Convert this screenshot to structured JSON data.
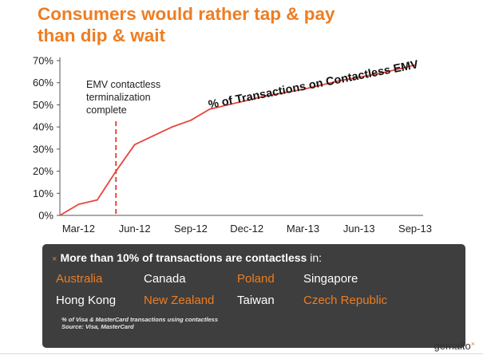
{
  "title": {
    "line1": "Consumers would rather tap & pay",
    "line2": "than dip & wait"
  },
  "colors": {
    "accent": "#ee7d22",
    "series": "#e8453c",
    "panel": "#3e3e3e"
  },
  "chart_data": {
    "type": "line",
    "title": "Consumers would rather tap & pay than dip & wait",
    "xlabel": "",
    "ylabel": "",
    "x_ticks": [
      "Mar-12",
      "Jun-12",
      "Sep-12",
      "Dec-12",
      "Mar-13",
      "Jun-13",
      "Sep-13"
    ],
    "y_ticks": [
      "0%",
      "10%",
      "20%",
      "30%",
      "40%",
      "50%",
      "60%",
      "70%"
    ],
    "ylim": [
      0,
      70
    ],
    "xlim": [
      "2012-02",
      "2013-09"
    ],
    "grid": false,
    "series": [
      {
        "name": "% of Transactions on Contactless EMV",
        "points": [
          {
            "x": "2012-02",
            "y": 0
          },
          {
            "x": "2012-03",
            "y": 5
          },
          {
            "x": "2012-04",
            "y": 7
          },
          {
            "x": "2012-05",
            "y": 20
          },
          {
            "x": "2012-06",
            "y": 32
          },
          {
            "x": "2012-07",
            "y": 36
          },
          {
            "x": "2012-08",
            "y": 40
          },
          {
            "x": "2012-09",
            "y": 43
          },
          {
            "x": "2012-10",
            "y": 48
          },
          {
            "x": "2012-11",
            "y": 50
          },
          {
            "x": "2012-12",
            "y": 52
          },
          {
            "x": "2013-01",
            "y": 54
          },
          {
            "x": "2013-02",
            "y": 55.5
          },
          {
            "x": "2013-03",
            "y": 57
          },
          {
            "x": "2013-04",
            "y": 59
          },
          {
            "x": "2013-05",
            "y": 61
          },
          {
            "x": "2013-06",
            "y": 62.5
          },
          {
            "x": "2013-07",
            "y": 64
          },
          {
            "x": "2013-08",
            "y": 66
          },
          {
            "x": "2013-09",
            "y": 68
          }
        ]
      }
    ],
    "annotations": [
      {
        "text_lines": [
          "EMV contactless",
          "terminalization",
          "complete"
        ],
        "x": "2012-05",
        "style": "dashed vertical line"
      }
    ]
  },
  "panel": {
    "bullet": "×",
    "heading_bold": "More than 10% of transactions are contactless",
    "heading_rest": " in:",
    "countries": [
      {
        "name": "Australia",
        "highlight": true
      },
      {
        "name": "Canada",
        "highlight": false
      },
      {
        "name": "Poland",
        "highlight": true
      },
      {
        "name": "Singapore",
        "highlight": false
      },
      {
        "name": "Hong Kong",
        "highlight": false
      },
      {
        "name": "New Zealand",
        "highlight": true
      },
      {
        "name": "Taiwan",
        "highlight": false
      },
      {
        "name": "Czech Republic",
        "highlight": true
      }
    ],
    "note_line1": "% of Visa & MasterCard transactions using contactless",
    "note_line2": "Source: Visa, MasterCard"
  },
  "logo": {
    "text": "gemalto",
    "mark": "×"
  }
}
